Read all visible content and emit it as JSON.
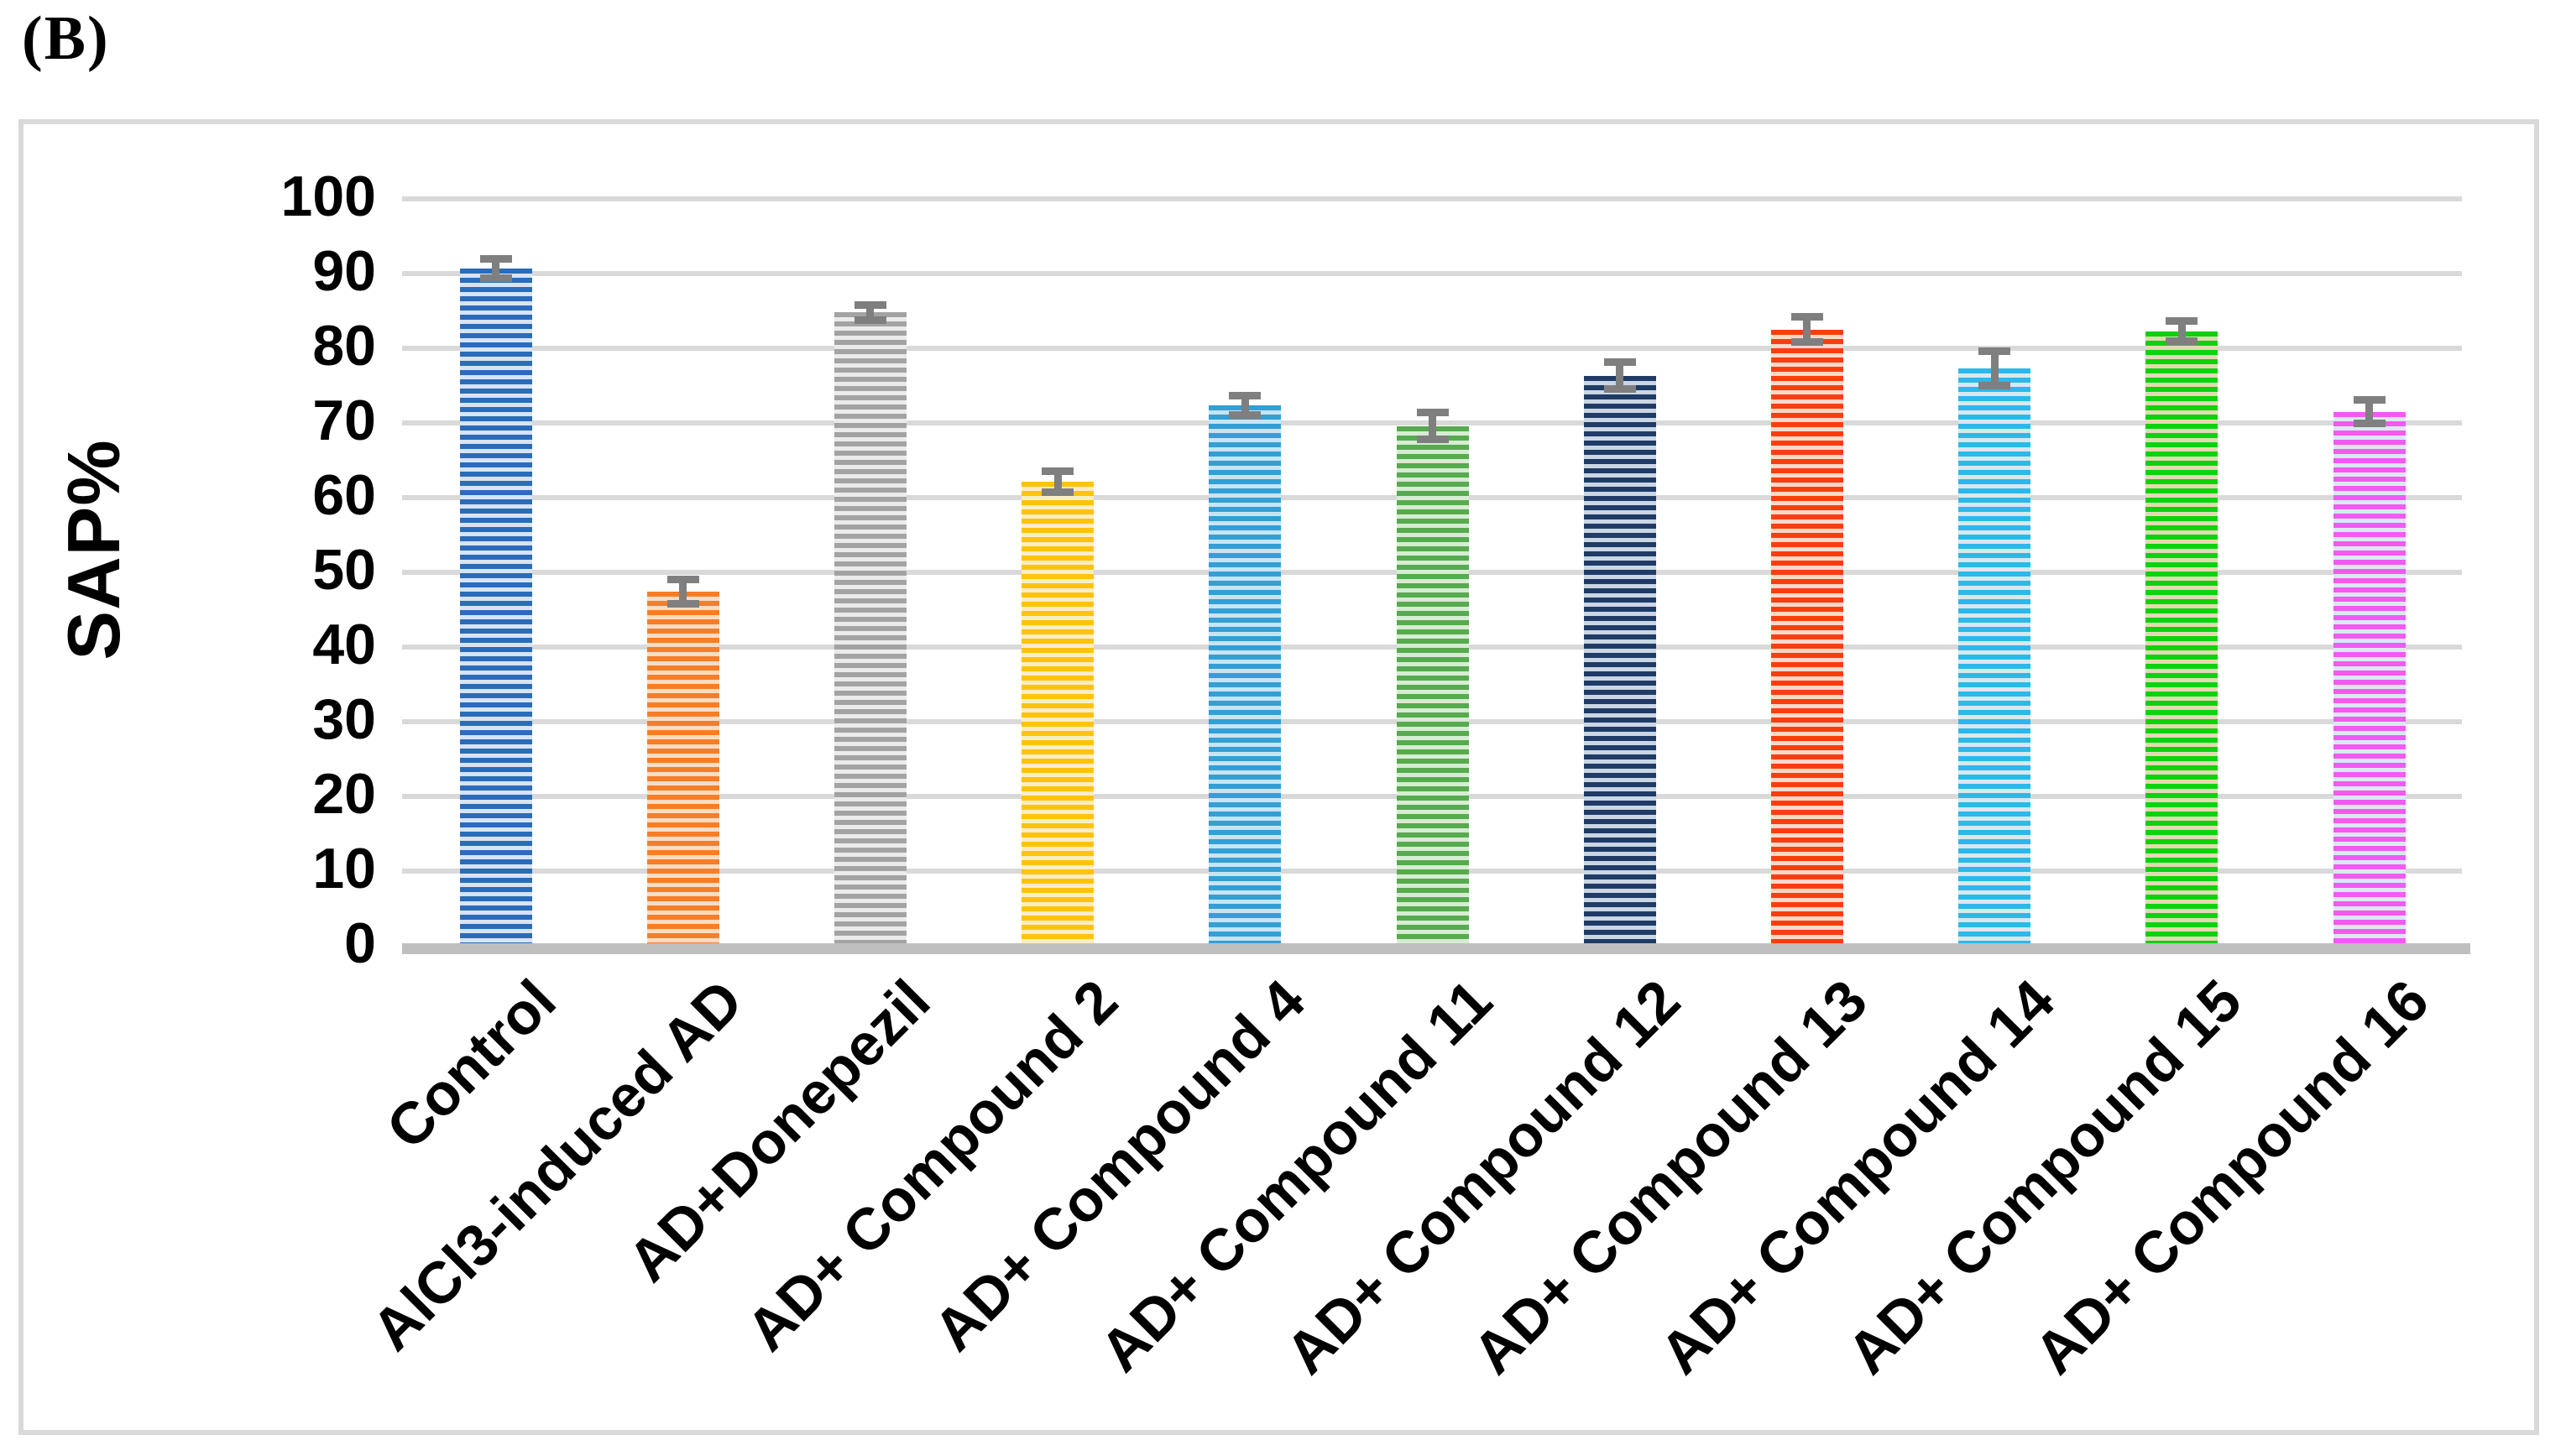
{
  "chart_data": {
    "type": "bar",
    "panel_label": "(B)",
    "title": "",
    "xlabel": "",
    "ylabel": "SAP%",
    "ylim": [
      0,
      100
    ],
    "ytick_step": 10,
    "ytick_labels": [
      "0",
      "10",
      "20",
      "30",
      "40",
      "50",
      "60",
      "70",
      "80",
      "90",
      "100"
    ],
    "grid": "horizontal-only",
    "legend": "none",
    "categories": [
      "Control",
      "AlCl3-induced AD",
      "AD+Donepezil",
      "AD+ Compound 2",
      "AD+ Compound 4",
      "AD+ Compound 11",
      "AD+ Compound 12",
      "AD+ Compound 13",
      "AD+ Compound 14",
      "AD+ Compound 15",
      "AD+ Compound 16"
    ],
    "values": [
      90.7,
      47.4,
      84.8,
      62.1,
      72.4,
      69.6,
      76.3,
      82.5,
      77.3,
      82.3,
      71.5
    ],
    "errors": [
      1.3,
      1.6,
      1.0,
      1.4,
      1.3,
      1.8,
      1.8,
      1.7,
      2.3,
      1.4,
      1.6
    ],
    "bar_style": "horizontal-stripes",
    "bar_colors": [
      {
        "main": "#2a6cb9",
        "light": "#d8e3f5"
      },
      {
        "main": "#f57e27",
        "light": "#fbdcc3"
      },
      {
        "main": "#a3a3a3",
        "light": "#ebebeb"
      },
      {
        "main": "#ffc20e",
        "light": "#fdedc4"
      },
      {
        "main": "#339fd5",
        "light": "#c8e4f4"
      },
      {
        "main": "#56ab4e",
        "light": "#d6ecd3"
      },
      {
        "main": "#1f3b66",
        "light": "#cbd6e5"
      },
      {
        "main": "#fa3d10",
        "light": "#fcd8ca"
      },
      {
        "main": "#2cb8ea",
        "light": "#d9e8ef"
      },
      {
        "main": "#0dd20d",
        "light": "#e3dab4"
      },
      {
        "main": "#f25af2",
        "light": "#dae9f1"
      }
    ],
    "error_bar_color": "#7f7f7f",
    "gridline_color": "#d9d9d9",
    "baseline_color": "#bfbfbf",
    "chart_border_color": "#d9d9d9",
    "background_color": "#ffffff"
  }
}
